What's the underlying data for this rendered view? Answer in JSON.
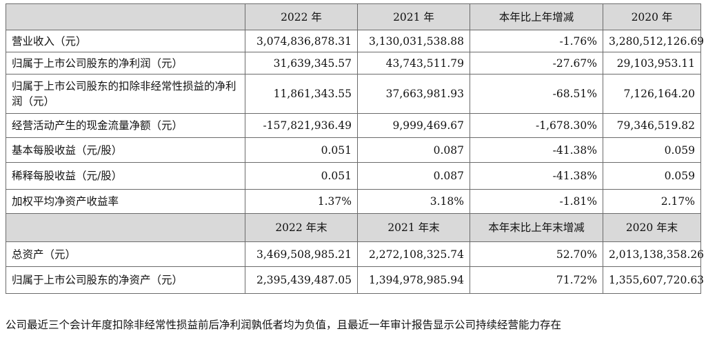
{
  "table": {
    "header1": [
      "",
      "2022 年",
      "2021 年",
      "本年比上年增减",
      "2020 年"
    ],
    "rows1": [
      {
        "label": "营业收入（元）",
        "v2022": "3,074,836,878.31",
        "v2021": "3,130,031,538.88",
        "change": "-1.76%",
        "v2020": "3,280,512,126.69"
      },
      {
        "label": "归属于上市公司股东的净利润（元）",
        "v2022": "31,639,345.57",
        "v2021": "43,743,511.79",
        "change": "-27.67%",
        "v2020": "29,103,953.11"
      },
      {
        "label": "归属于上市公司股东的扣除非经常性损益的净利润（元）",
        "v2022": "11,861,343.55",
        "v2021": "37,663,981.93",
        "change": "-68.51%",
        "v2020": "7,126,164.20"
      },
      {
        "label": "经营活动产生的现金流量净额（元）",
        "v2022": "-157,821,936.49",
        "v2021": "9,999,469.67",
        "change": "-1,678.30%",
        "v2020": "79,346,519.82"
      },
      {
        "label": "基本每股收益（元/股）",
        "v2022": "0.051",
        "v2021": "0.087",
        "change": "-41.38%",
        "v2020": "0.059"
      },
      {
        "label": "稀释每股收益（元/股）",
        "v2022": "0.051",
        "v2021": "0.087",
        "change": "-41.38%",
        "v2020": "0.059"
      },
      {
        "label": "加权平均净资产收益率",
        "v2022": "1.37%",
        "v2021": "3.18%",
        "change": "-1.81%",
        "v2020": "2.17%"
      }
    ],
    "header2": [
      "",
      "2022 年末",
      "2021 年末",
      "本年末比上年末增减",
      "2020 年末"
    ],
    "rows2": [
      {
        "label": "总资产（元）",
        "v2022": "3,469,508,985.21",
        "v2021": "2,272,108,325.74",
        "change": "52.70%",
        "v2020": "2,013,138,358.26"
      },
      {
        "label": "归属于上市公司股东的净资产（元）",
        "v2022": "2,395,439,487.05",
        "v2021": "1,394,978,985.94",
        "change": "71.72%",
        "v2020": "1,355,607,720.63"
      }
    ]
  },
  "footer_text": "公司最近三个会计年度扣除非经常性损益前后净利润孰低者均为负值，且最近一年审计报告显示公司持续经营能力存在"
}
